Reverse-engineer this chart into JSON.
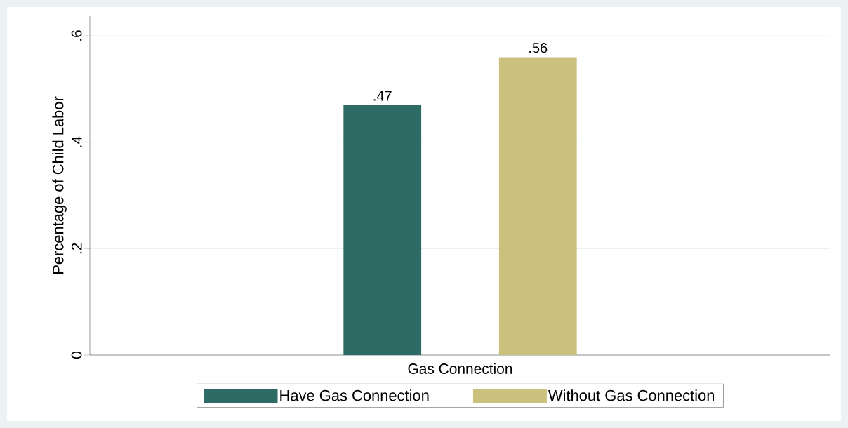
{
  "chart_data": {
    "type": "bar",
    "ylabel": "Percentage of Child Labor",
    "categories": [
      "Gas Connection"
    ],
    "series": [
      {
        "name": "Have Gas Connection",
        "color": "#2e6b65",
        "values": [
          0.47
        ],
        "value_labels": [
          ".47"
        ]
      },
      {
        "name": "Without Gas Connection",
        "color": "#cbc17f",
        "values": [
          0.56
        ],
        "value_labels": [
          ".56"
        ]
      }
    ],
    "ylim": [
      0,
      0.637
    ],
    "yticks": [
      0,
      {
        "value": 0.2,
        "label": ".2"
      },
      {
        "value": 0.4,
        "label": ".4"
      },
      {
        "value": 0.6,
        "label": ".6"
      }
    ],
    "grid": "y",
    "legend": "bottom"
  }
}
